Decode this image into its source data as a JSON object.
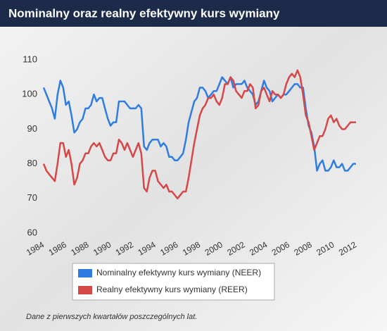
{
  "chart_data": {
    "type": "line",
    "title": "Nominalny oraz realny efektywny kurs wymiany",
    "note": "Dane z pierwszych kwartałów poszczególnych lat.",
    "x": [
      1984,
      1984.25,
      1984.5,
      1984.75,
      1985,
      1985.25,
      1985.5,
      1985.75,
      1986,
      1986.25,
      1986.5,
      1986.75,
      1987,
      1987.25,
      1987.5,
      1987.75,
      1988,
      1988.25,
      1988.5,
      1988.75,
      1989,
      1989.25,
      1989.5,
      1989.75,
      1990,
      1990.25,
      1990.5,
      1990.75,
      1991,
      1991.25,
      1991.5,
      1991.75,
      1992,
      1992.25,
      1992.5,
      1992.75,
      1993,
      1993.25,
      1993.5,
      1993.75,
      1994,
      1994.25,
      1994.5,
      1994.75,
      1995,
      1995.25,
      1995.5,
      1995.75,
      1996,
      1996.25,
      1996.5,
      1996.75,
      1997,
      1997.25,
      1997.5,
      1997.75,
      1998,
      1998.25,
      1998.5,
      1998.75,
      1999,
      1999.25,
      1999.5,
      1999.75,
      2000,
      2000.25,
      2000.5,
      2000.75,
      2001,
      2001.25,
      2001.5,
      2001.75,
      2002,
      2002.25,
      2002.5,
      2002.75,
      2003,
      2003.25,
      2003.5,
      2003.75,
      2004,
      2004.25,
      2004.5,
      2004.75,
      2005,
      2005.25,
      2005.5,
      2005.75,
      2006,
      2006.25,
      2006.5,
      2006.75,
      2007,
      2007.25,
      2007.5,
      2007.75,
      2008,
      2008.25,
      2008.5,
      2008.75,
      2009,
      2009.25,
      2009.5,
      2009.75,
      2010,
      2010.25,
      2010.5,
      2010.75,
      2011,
      2011.25,
      2011.5,
      2011.75,
      2012
    ],
    "series": [
      {
        "name": "Nominalny efektywny kurs wymiany (NEER)",
        "color": "#2f7de1",
        "values": [
          102,
          100,
          98,
          96,
          93,
          100,
          104,
          102,
          97,
          98,
          94,
          89,
          90,
          92,
          93,
          96,
          96,
          97,
          100,
          98,
          99,
          99,
          96,
          93,
          91,
          92,
          92,
          98,
          98,
          98,
          97,
          96,
          96,
          96,
          97,
          96,
          85,
          84,
          86,
          87,
          87,
          87,
          85,
          86,
          85,
          82,
          82,
          81,
          81,
          82,
          83,
          87,
          92,
          95,
          98,
          99,
          102,
          102,
          101,
          99,
          100,
          101,
          101,
          103,
          105,
          104,
          103,
          105,
          102,
          103,
          103,
          103,
          104,
          102,
          101,
          100,
          97,
          98,
          101,
          104,
          102,
          101,
          98,
          99,
          100,
          99,
          100,
          100,
          101,
          102,
          103,
          103,
          102,
          102,
          96,
          91,
          89,
          85,
          78,
          80,
          81,
          78,
          78,
          79,
          81,
          79,
          79,
          80,
          78,
          78,
          79,
          80,
          80
        ]
      },
      {
        "name": "Realny efektywny kurs wymiany (REER)",
        "color": "#d64848",
        "values": [
          80,
          78,
          77,
          76,
          75,
          80,
          86,
          86,
          82,
          84,
          80,
          74,
          76,
          80,
          81,
          83,
          83,
          85,
          86,
          85,
          86,
          84,
          82,
          81,
          81,
          83,
          83,
          87,
          86,
          84,
          86,
          84,
          82,
          84,
          86,
          83,
          73,
          72,
          76,
          78,
          78,
          75,
          74,
          73,
          74,
          72,
          72,
          71,
          70,
          71,
          72,
          72,
          76,
          81,
          86,
          90,
          94,
          96,
          97,
          99,
          99,
          100,
          98,
          97,
          99,
          103,
          103,
          105,
          104,
          101,
          100,
          99,
          101,
          101,
          103,
          102,
          96,
          97,
          101,
          102,
          100,
          98,
          101,
          100,
          100,
          99,
          100,
          103,
          105,
          106,
          105,
          107,
          105,
          100,
          94,
          92,
          88,
          84,
          86,
          88,
          88,
          90,
          93,
          94,
          92,
          93,
          91,
          90,
          90,
          91,
          92,
          92,
          92
        ]
      }
    ],
    "xlim": [
      1984,
      2012
    ],
    "xticks": [
      1984,
      1986,
      1988,
      1990,
      1992,
      1994,
      1996,
      1998,
      2000,
      2002,
      2004,
      2006,
      2008,
      2010,
      2012
    ],
    "ylim": [
      60,
      110
    ],
    "yticks": [
      60,
      70,
      80,
      90,
      100,
      110
    ]
  }
}
